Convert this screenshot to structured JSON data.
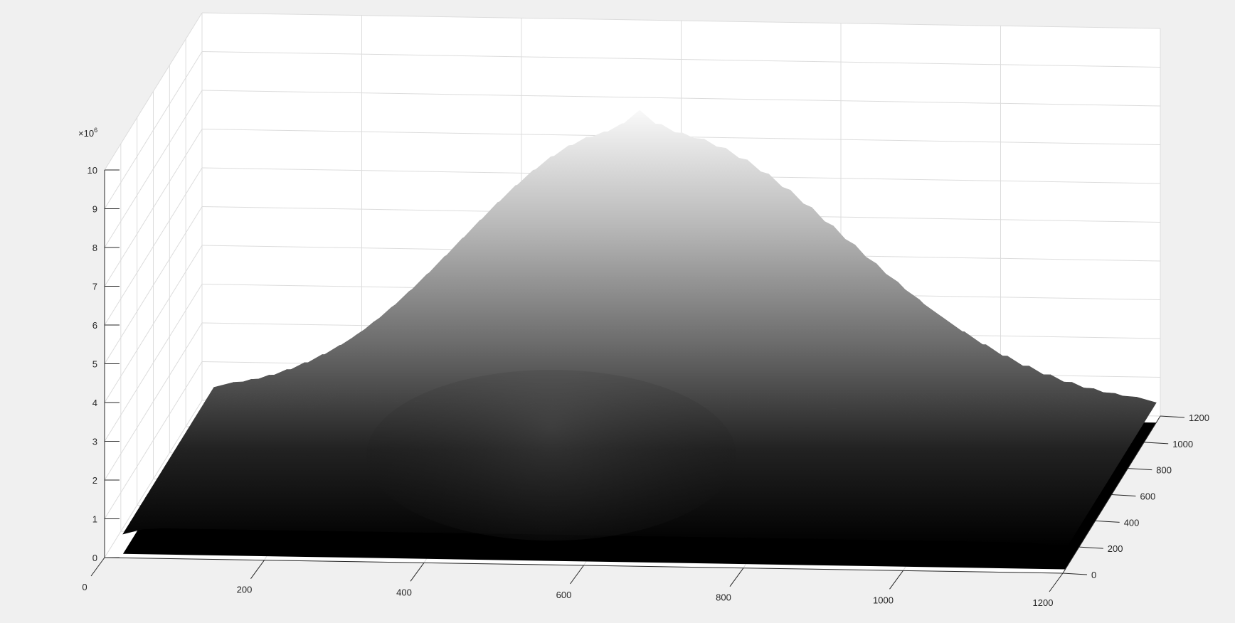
{
  "chart_data": {
    "type": "surface",
    "title": "",
    "xlabel": "",
    "ylabel": "",
    "zlabel": "",
    "x_range": [
      0,
      1200
    ],
    "y_range": [
      0,
      1200
    ],
    "z_range": [
      0,
      10
    ],
    "z_exponent_label": "×10",
    "z_exponent": "6",
    "x_ticks": [
      "0",
      "200",
      "400",
      "600",
      "800",
      "1000",
      "1200"
    ],
    "y_ticks": [
      "0",
      "200",
      "400",
      "600",
      "800",
      "1000",
      "1200"
    ],
    "z_ticks": [
      "0",
      "1",
      "2",
      "3",
      "4",
      "5",
      "6",
      "7",
      "8",
      "9",
      "10"
    ],
    "surface_extent": {
      "x": [
        20,
        1200
      ],
      "y": [
        30,
        1150
      ]
    },
    "peak": {
      "x": 610,
      "y": 590,
      "z": 9.2
    },
    "grid": true,
    "colormap": "gray",
    "colors": {
      "background": "#f0f0f0",
      "axes_face": "#ffffff",
      "grid": "#dcdcdc",
      "axis_line": "#262626",
      "surface_low": "#000000",
      "surface_high": "#ffffff"
    }
  }
}
